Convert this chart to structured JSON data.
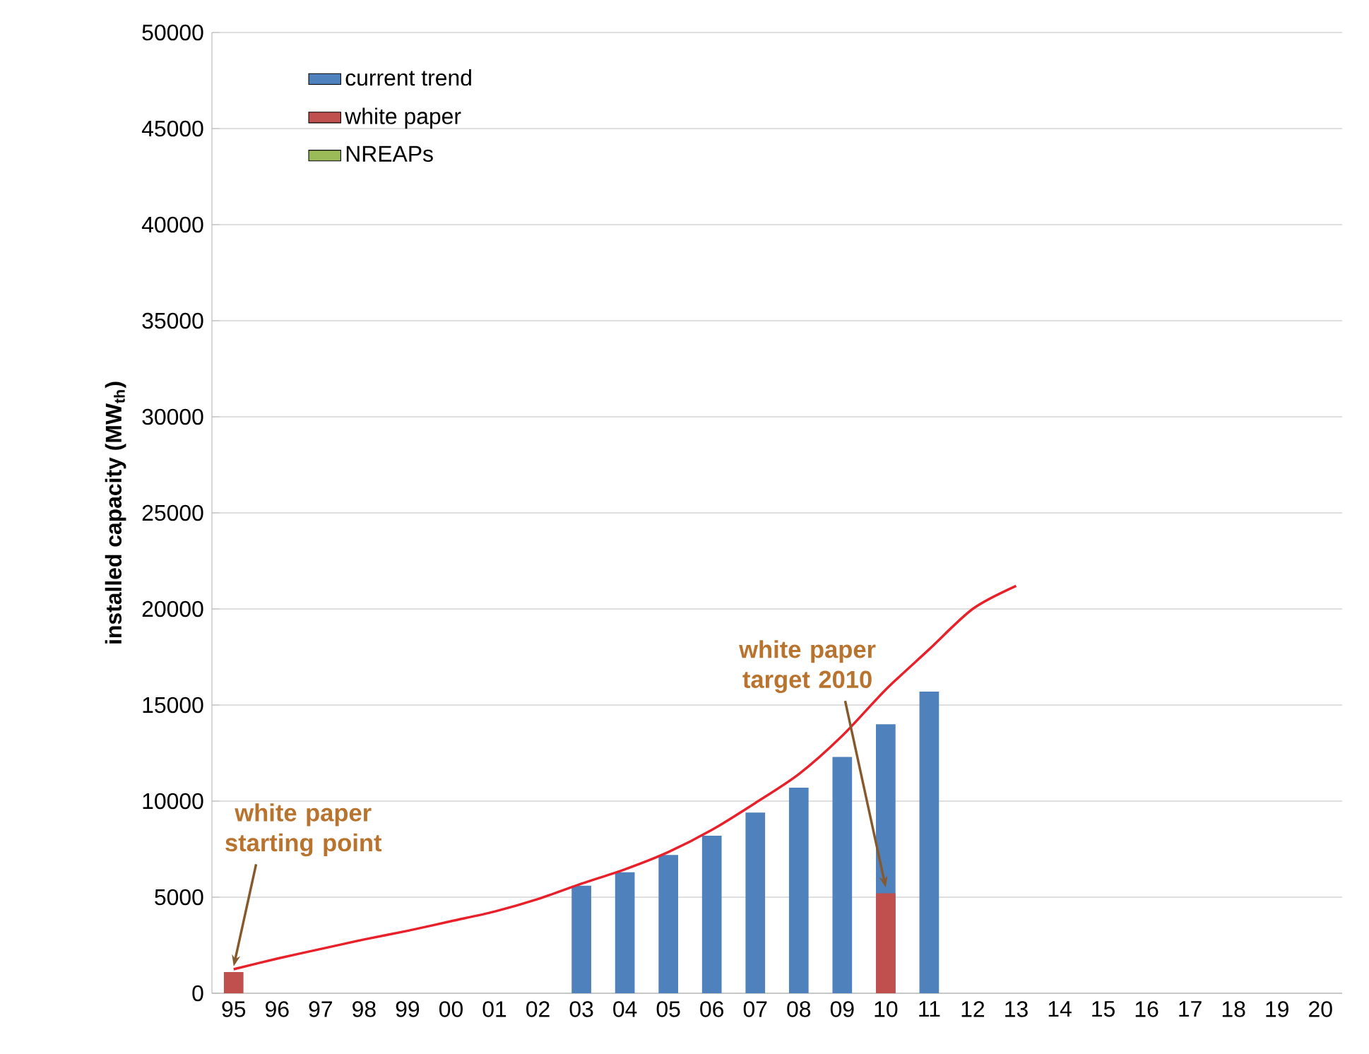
{
  "chart_data": {
    "type": "bar",
    "ylabel": "installed capacity (MW$_{th}$)",
    "categories": [
      "95",
      "96",
      "97",
      "98",
      "99",
      "00",
      "01",
      "02",
      "03",
      "04",
      "05",
      "06",
      "07",
      "08",
      "09",
      "10",
      "11",
      "12",
      "13",
      "14",
      "15",
      "16",
      "17",
      "18",
      "19",
      "20"
    ],
    "series": [
      {
        "name": "current trend",
        "color": "#4f81bd",
        "values": [
          null,
          null,
          null,
          null,
          null,
          null,
          null,
          null,
          5600,
          6300,
          7200,
          8200,
          9400,
          10700,
          12300,
          14000,
          15700,
          null,
          null,
          null,
          null,
          null,
          null,
          null,
          null,
          null
        ]
      },
      {
        "name": "white paper",
        "color": "#c0504d",
        "values": [
          1100,
          null,
          null,
          null,
          null,
          null,
          null,
          null,
          null,
          null,
          null,
          null,
          null,
          null,
          null,
          5200,
          null,
          null,
          null,
          null,
          null,
          null,
          null,
          null,
          null,
          null
        ]
      },
      {
        "name": "NREAPs",
        "color": "#9bbb59",
        "values": [
          null,
          null,
          null,
          null,
          null,
          null,
          null,
          null,
          null,
          null,
          null,
          null,
          null,
          null,
          null,
          null,
          null,
          null,
          null,
          null,
          null,
          null,
          null,
          null,
          null,
          null
        ]
      },
      {
        "type": "line",
        "color": "#e8202a",
        "values": [
          1250,
          1800,
          2300,
          2800,
          3250,
          3750,
          4250,
          4900,
          5700,
          6450,
          7350,
          8500,
          9900,
          11400,
          13400,
          15800,
          17900,
          20000,
          21200,
          null,
          null,
          null,
          null,
          null,
          null,
          null
        ]
      }
    ],
    "ylim": [
      0,
      50000
    ],
    "yticks": [
      0,
      5000,
      10000,
      15000,
      20000,
      25000,
      30000,
      35000,
      40000,
      45000,
      50000
    ],
    "grid": "y",
    "legend": "top left",
    "annotations": [
      {
        "text": "white paper starting point",
        "x": "95",
        "y": 1100
      },
      {
        "text": "white paper target 2010",
        "x": "10",
        "y": 5200
      }
    ]
  }
}
